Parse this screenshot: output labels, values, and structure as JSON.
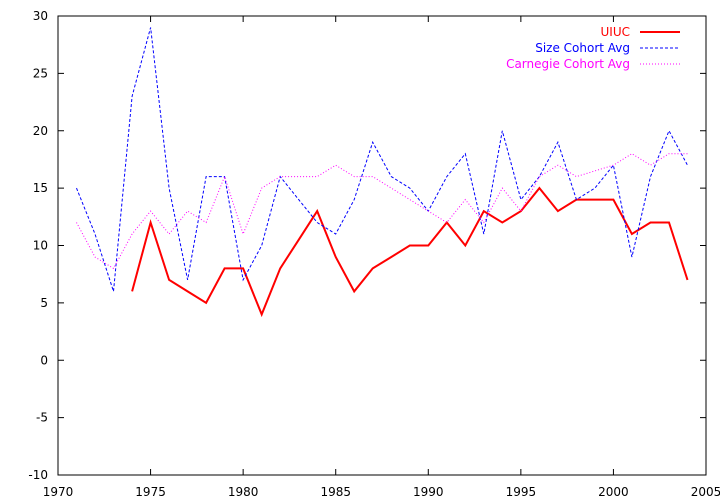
{
  "chart_data": {
    "type": "line",
    "title": "",
    "xlabel": "",
    "ylabel": "",
    "xlim": [
      1970,
      2005
    ],
    "ylim": [
      -10,
      30
    ],
    "xticks": [
      1970,
      1975,
      1980,
      1985,
      1990,
      1995,
      2000,
      2005
    ],
    "yticks": [
      -10,
      -5,
      0,
      5,
      10,
      15,
      20,
      25,
      30
    ],
    "grid": false,
    "legend_position": "top-right",
    "series": [
      {
        "name": "UIUC",
        "color": "#ff0000",
        "style": "solid",
        "x": [
          1974,
          1975,
          1976,
          1977,
          1978,
          1979,
          1980,
          1981,
          1982,
          1983,
          1984,
          1985,
          1986,
          1987,
          1988,
          1989,
          1990,
          1991,
          1992,
          1993,
          1994,
          1995,
          1996,
          1997,
          1998,
          1999,
          2000,
          2001,
          2002,
          2003,
          2004
        ],
        "values": [
          6,
          12,
          7,
          6,
          5,
          8,
          8,
          4,
          8,
          10.5,
          13,
          9,
          6,
          8,
          9,
          10,
          10,
          12,
          10,
          13,
          12,
          13,
          15,
          13,
          14,
          14,
          14,
          11,
          12,
          12,
          7
        ]
      },
      {
        "name": "Size Cohort Avg",
        "color": "#0000ff",
        "style": "dashed",
        "x": [
          1971,
          1972,
          1973,
          1974,
          1975,
          1976,
          1977,
          1978,
          1979,
          1980,
          1981,
          1982,
          1983,
          1984,
          1985,
          1986,
          1987,
          1988,
          1989,
          1990,
          1991,
          1992,
          1993,
          1994,
          1995,
          1996,
          1997,
          1998,
          1999,
          2000,
          2001,
          2002,
          2003,
          2004
        ],
        "values": [
          15,
          11,
          6,
          23,
          29,
          15,
          7,
          16,
          16,
          7,
          10,
          16,
          14,
          12,
          11,
          14,
          19,
          16,
          15,
          13,
          16,
          18,
          11,
          20,
          14,
          16,
          19,
          14,
          15,
          17,
          9,
          16,
          20,
          17
        ]
      },
      {
        "name": "Carnegie Cohort Avg",
        "color": "#ff00ff",
        "style": "dotted",
        "x": [
          1971,
          1972,
          1973,
          1974,
          1975,
          1976,
          1977,
          1978,
          1979,
          1980,
          1981,
          1982,
          1983,
          1984,
          1985,
          1986,
          1987,
          1988,
          1989,
          1990,
          1991,
          1992,
          1993,
          1994,
          1995,
          1996,
          1997,
          1998,
          1999,
          2000,
          2001,
          2002,
          2003,
          2004
        ],
        "values": [
          12,
          9,
          8,
          11,
          13,
          11,
          13,
          12,
          16,
          11,
          15,
          16,
          16,
          16,
          17,
          16,
          16,
          15,
          14,
          13,
          12,
          14,
          12,
          15,
          13,
          16,
          17,
          16,
          16.5,
          17,
          18,
          17,
          18,
          18
        ]
      }
    ]
  }
}
